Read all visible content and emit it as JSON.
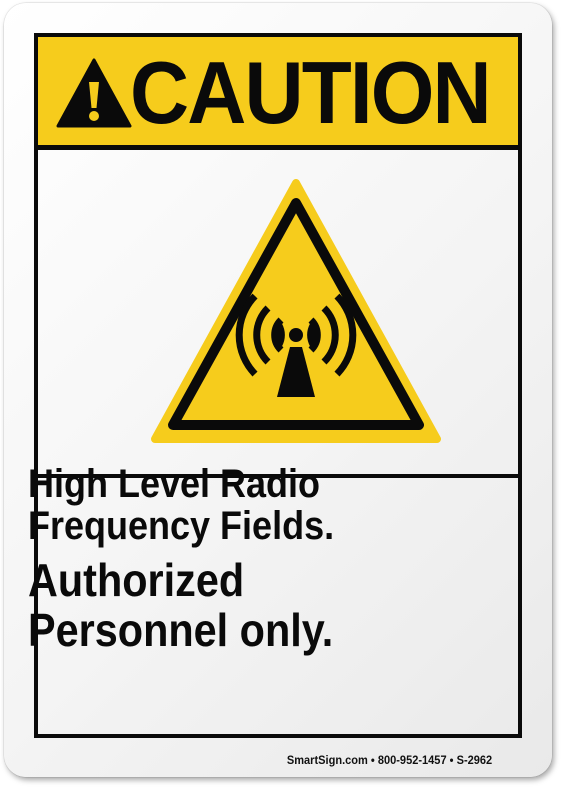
{
  "header": {
    "title": "CAUTION",
    "icon": "exclamation-triangle-icon",
    "background_color": "#f6cc1c"
  },
  "symbol": {
    "icon": "non-ionizing-radiation-icon",
    "fill_color": "#f6cc1c",
    "outline_color": "#0a0a0a"
  },
  "message": {
    "line1": "High Level Radio",
    "line2": "Frequency Fields.",
    "line3": "Authorized",
    "line4": "Personnel only."
  },
  "footer": {
    "text": "SmartSign.com • 800-952-1457 • S-2962"
  }
}
